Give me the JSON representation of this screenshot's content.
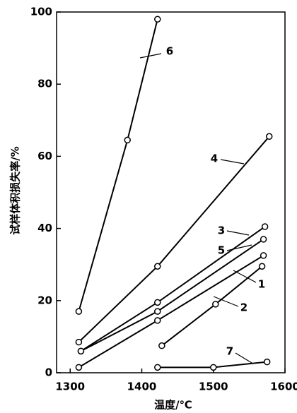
{
  "chart_data": {
    "type": "line",
    "xlabel": "温度/℃",
    "ylabel": "试样体积损失率/%",
    "xlim": [
      1281,
      1600
    ],
    "xticks": [
      1300,
      1400,
      1500,
      1600
    ],
    "ylim": [
      0,
      100
    ],
    "yticks": [
      0,
      20,
      40,
      60,
      80,
      100
    ],
    "color": "#000000",
    "series": [
      {
        "name": "6",
        "x": [
          1312,
          1380,
          1422
        ],
        "values": [
          17,
          64.5,
          98
        ]
      },
      {
        "name": "4",
        "x": [
          1312,
          1422,
          1578
        ],
        "values": [
          8.5,
          29.5,
          65.5
        ]
      },
      {
        "name": "3",
        "x": [
          1315,
          1422,
          1572
        ],
        "values": [
          6,
          19.5,
          40.5
        ]
      },
      {
        "name": "5",
        "x": [
          1315,
          1422,
          1570
        ],
        "values": [
          6,
          17,
          37
        ]
      },
      {
        "name": "1",
        "x": [
          1312,
          1422,
          1570
        ],
        "values": [
          1.5,
          14.5,
          32.5
        ]
      },
      {
        "name": "2",
        "x": [
          1428,
          1503,
          1568
        ],
        "values": [
          7.5,
          19,
          29.5
        ]
      },
      {
        "name": "7",
        "x": [
          1422,
          1500,
          1575
        ],
        "values": [
          1.5,
          1.5,
          3
        ]
      }
    ]
  }
}
